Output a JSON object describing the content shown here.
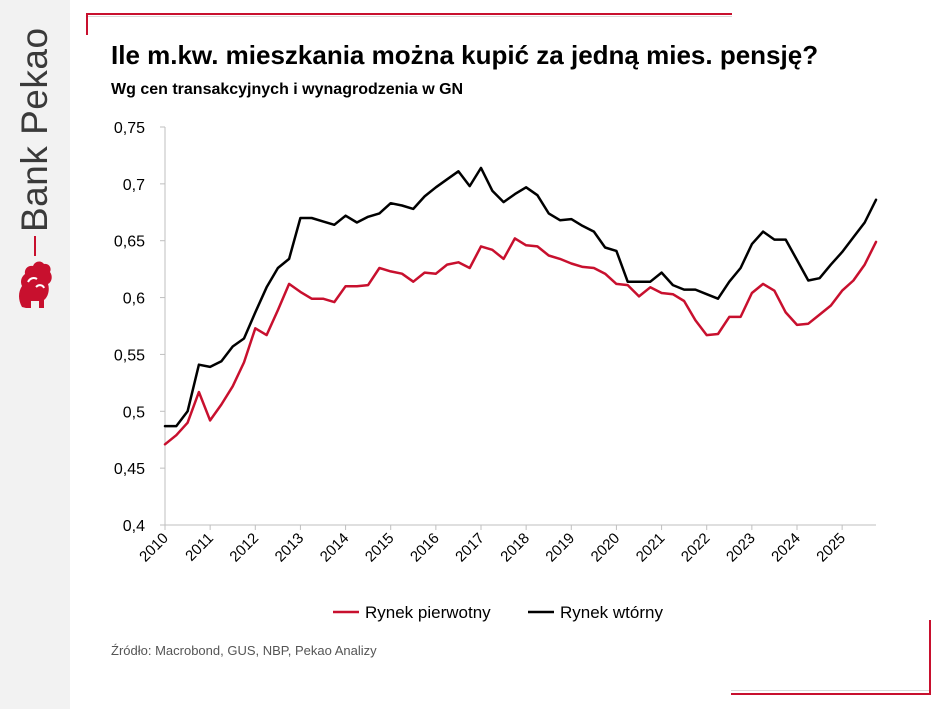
{
  "brand": {
    "name": "Bank Pekao",
    "logo_icon": "pekao-bison-logo-icon"
  },
  "header": {
    "title": "Ile m.kw. mieszkania można kupić za jedną mies. pensję?",
    "subtitle": "Wg cen transakcyjnych i wynagrodzenia w GN"
  },
  "footer": {
    "source": "Źródło: Macrobond, GUS, NBP, Pekao Analizy"
  },
  "colors": {
    "accent": "#c8102e",
    "primary_series": "#c8102e",
    "secondary_series": "#000000"
  },
  "chart_data": {
    "type": "line",
    "title": "Ile m.kw. mieszkania można kupić za jedną mies. pensję?",
    "subtitle": "Wg cen transakcyjnych i wynagrodzenia w GN",
    "xlabel": "",
    "ylabel": "",
    "ylim": [
      0.4,
      0.75
    ],
    "y_ticks": [
      "0,4",
      "0,45",
      "0,5",
      "0,55",
      "0,6",
      "0,65",
      "0,7",
      "0,75"
    ],
    "y_tick_values": [
      0.4,
      0.45,
      0.5,
      0.55,
      0.6,
      0.65,
      0.7,
      0.75
    ],
    "x_ticks": [
      "2010",
      "2011",
      "2012",
      "2013",
      "2014",
      "2015",
      "2016",
      "2017",
      "2018",
      "2019",
      "2020",
      "2021",
      "2022",
      "2023",
      "2024",
      "2025"
    ],
    "x_tick_values": [
      2010,
      2011,
      2012,
      2013,
      2014,
      2015,
      2016,
      2017,
      2018,
      2019,
      2020,
      2021,
      2022,
      2023,
      2024,
      2025
    ],
    "xlim": [
      2010,
      2025.75
    ],
    "grid": false,
    "legend_position": "bottom",
    "x": [
      2010.0,
      2010.25,
      2010.5,
      2010.75,
      2011.0,
      2011.25,
      2011.5,
      2011.75,
      2012.0,
      2012.25,
      2012.5,
      2012.75,
      2013.0,
      2013.25,
      2013.5,
      2013.75,
      2014.0,
      2014.25,
      2014.5,
      2014.75,
      2015.0,
      2015.25,
      2015.5,
      2015.75,
      2016.0,
      2016.25,
      2016.5,
      2016.75,
      2017.0,
      2017.25,
      2017.5,
      2017.75,
      2018.0,
      2018.25,
      2018.5,
      2018.75,
      2019.0,
      2019.25,
      2019.5,
      2019.75,
      2020.0,
      2020.25,
      2020.5,
      2020.75,
      2021.0,
      2021.25,
      2021.5,
      2021.75,
      2022.0,
      2022.25,
      2022.5,
      2022.75,
      2023.0,
      2023.25,
      2023.5,
      2023.75,
      2024.0,
      2024.25,
      2024.5,
      2024.75,
      2025.0,
      2025.25,
      2025.5,
      2025.75
    ],
    "series": [
      {
        "name": "Rynek pierwotny",
        "color": "#c8102e",
        "values": [
          0.471,
          0.479,
          0.49,
          0.517,
          0.492,
          0.506,
          0.522,
          0.543,
          0.573,
          0.567,
          0.589,
          0.612,
          0.605,
          0.599,
          0.599,
          0.596,
          0.61,
          0.61,
          0.611,
          0.626,
          0.623,
          0.621,
          0.614,
          0.622,
          0.621,
          0.629,
          0.631,
          0.626,
          0.645,
          0.642,
          0.634,
          0.652,
          0.646,
          0.645,
          0.637,
          0.634,
          0.63,
          0.627,
          0.626,
          0.621,
          0.612,
          0.611,
          0.601,
          0.609,
          0.604,
          0.603,
          0.597,
          0.58,
          0.567,
          0.568,
          0.583,
          0.583,
          0.604,
          0.612,
          0.606,
          0.587,
          0.576,
          0.577,
          0.585,
          0.593,
          0.606,
          0.615,
          0.629,
          0.649
        ]
      },
      {
        "name": "Rynek wtórny",
        "color": "#000000",
        "values": [
          0.487,
          0.487,
          0.5,
          0.541,
          0.539,
          0.544,
          0.557,
          0.564,
          0.587,
          0.609,
          0.626,
          0.634,
          0.67,
          0.67,
          0.667,
          0.664,
          0.672,
          0.666,
          0.671,
          0.674,
          0.683,
          0.681,
          0.678,
          0.689,
          0.697,
          0.704,
          0.711,
          0.698,
          0.714,
          0.694,
          0.684,
          0.691,
          0.697,
          0.69,
          0.674,
          0.668,
          0.669,
          0.663,
          0.658,
          0.644,
          0.641,
          0.614,
          0.614,
          0.614,
          0.622,
          0.611,
          0.607,
          0.607,
          0.603,
          0.599,
          0.614,
          0.626,
          0.647,
          0.658,
          0.651,
          0.651,
          0.633,
          0.615,
          0.617,
          0.629,
          0.64,
          0.653,
          0.666,
          0.686
        ]
      }
    ]
  }
}
